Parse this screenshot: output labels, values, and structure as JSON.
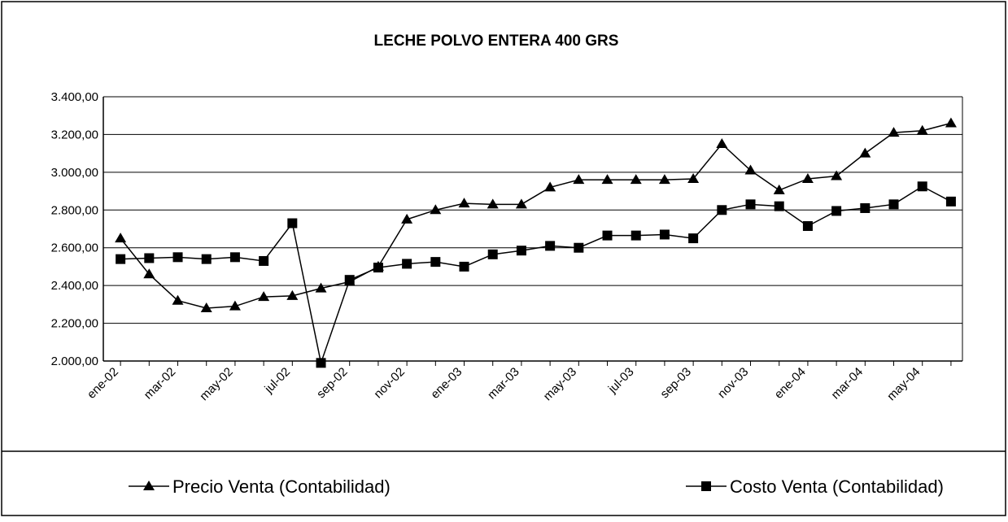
{
  "chart_data": {
    "type": "line",
    "title": "LECHE POLVO ENTERA 400 GRS",
    "categories": [
      "ene-02",
      null,
      "mar-02",
      null,
      "may-02",
      null,
      "jul-02",
      null,
      "sep-02",
      null,
      "nov-02",
      null,
      "ene-03",
      null,
      "mar-03",
      null,
      "may-03",
      null,
      "jul-03",
      null,
      "sep-03",
      null,
      "nov-03",
      null,
      "ene-04",
      null,
      "mar-04",
      null,
      "may-04",
      null
    ],
    "series": [
      {
        "name": "Precio Venta (Contabilidad)",
        "color": "#000000",
        "marker": "triangle",
        "values": [
          2650,
          2460,
          2320,
          2280,
          2290,
          2340,
          2345,
          2385,
          2420,
          2500,
          2750,
          2800,
          2835,
          2830,
          2830,
          2920,
          2960,
          2960,
          2960,
          2960,
          2965,
          3150,
          3010,
          2905,
          2965,
          2980,
          3100,
          3210,
          3220,
          3260
        ]
      },
      {
        "name": "Costo Venta (Contabilidad)",
        "color": "#000000",
        "marker": "square",
        "values": [
          2540,
          2545,
          2550,
          2540,
          2550,
          2530,
          2730,
          1990,
          2430,
          2495,
          2515,
          2525,
          2500,
          2565,
          2585,
          2610,
          2600,
          2665,
          2665,
          2670,
          2650,
          2800,
          2830,
          2820,
          2715,
          2795,
          2810,
          2830,
          2925,
          2845
        ]
      }
    ],
    "ylim": [
      2000,
      3400
    ],
    "yticks": [
      {
        "value": 2000,
        "label": "2.000,00"
      },
      {
        "value": 2200,
        "label": "2.200,00"
      },
      {
        "value": 2400,
        "label": "2.400,00"
      },
      {
        "value": 2600,
        "label": "2.600,00"
      },
      {
        "value": 2800,
        "label": "2.800,00"
      },
      {
        "value": 3000,
        "label": "3.000,00"
      },
      {
        "value": 3200,
        "label": "3.200,00"
      },
      {
        "value": 3400,
        "label": "3.400,00"
      }
    ],
    "grid": true,
    "legend": "bottom"
  }
}
